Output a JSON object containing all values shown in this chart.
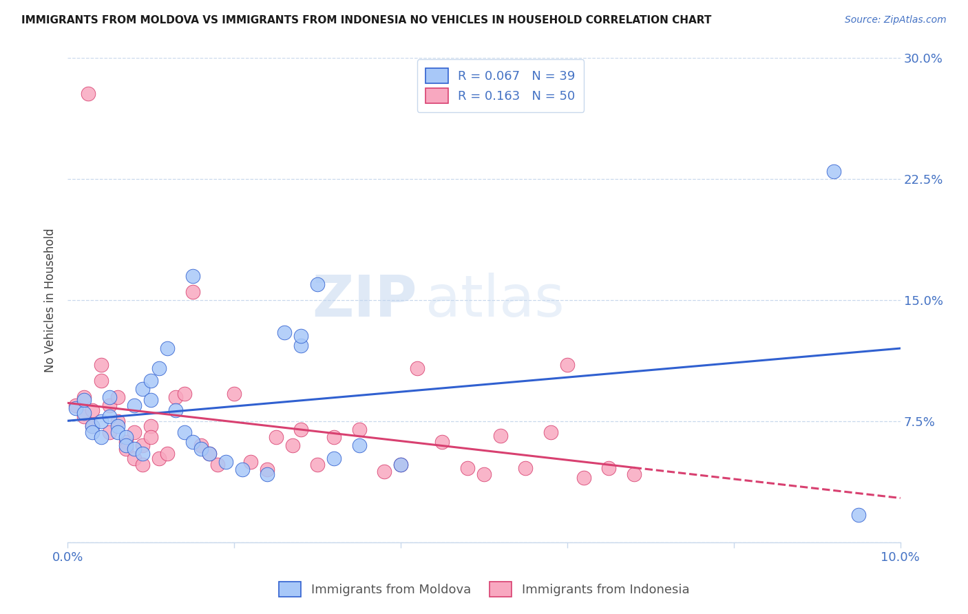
{
  "title": "IMMIGRANTS FROM MOLDOVA VS IMMIGRANTS FROM INDONESIA NO VEHICLES IN HOUSEHOLD CORRELATION CHART",
  "source": "Source: ZipAtlas.com",
  "ylabel": "No Vehicles in Household",
  "xlim": [
    0.0,
    0.1
  ],
  "ylim": [
    0.0,
    0.3
  ],
  "xticks": [
    0.0,
    0.02,
    0.04,
    0.06,
    0.08,
    0.1
  ],
  "xticklabels": [
    "0.0%",
    "",
    "",
    "",
    "",
    "10.0%"
  ],
  "yticks": [
    0.0,
    0.075,
    0.15,
    0.225,
    0.3
  ],
  "yticklabels": [
    "",
    "7.5%",
    "15.0%",
    "22.5%",
    "30.0%"
  ],
  "legend_label1": "Immigrants from Moldova",
  "legend_label2": "Immigrants from Indonesia",
  "R1": 0.067,
  "N1": 39,
  "R2": 0.163,
  "N2": 50,
  "color1": "#a8c8f8",
  "color2": "#f8a8c0",
  "line_color1": "#3060d0",
  "line_color2": "#d84070",
  "watermark_zip": "ZIP",
  "watermark_atlas": "atlas",
  "background_color": "#ffffff",
  "grid_color": "#c8d8ec",
  "tick_color": "#4472c4",
  "moldova_x": [
    0.001,
    0.002,
    0.002,
    0.003,
    0.003,
    0.004,
    0.004,
    0.005,
    0.005,
    0.006,
    0.006,
    0.007,
    0.007,
    0.008,
    0.008,
    0.009,
    0.009,
    0.01,
    0.01,
    0.011,
    0.012,
    0.013,
    0.014,
    0.015,
    0.016,
    0.017,
    0.019,
    0.021,
    0.024,
    0.026,
    0.028,
    0.03,
    0.032,
    0.035,
    0.04,
    0.028,
    0.015,
    0.092,
    0.095
  ],
  "moldova_y": [
    0.083,
    0.08,
    0.088,
    0.072,
    0.068,
    0.075,
    0.065,
    0.09,
    0.078,
    0.072,
    0.068,
    0.065,
    0.06,
    0.058,
    0.085,
    0.055,
    0.095,
    0.1,
    0.088,
    0.108,
    0.12,
    0.082,
    0.068,
    0.062,
    0.058,
    0.055,
    0.05,
    0.045,
    0.042,
    0.13,
    0.122,
    0.16,
    0.052,
    0.06,
    0.048,
    0.128,
    0.165,
    0.23,
    0.017
  ],
  "indonesia_x": [
    0.001,
    0.002,
    0.002,
    0.003,
    0.003,
    0.004,
    0.004,
    0.005,
    0.005,
    0.006,
    0.006,
    0.007,
    0.007,
    0.008,
    0.008,
    0.009,
    0.009,
    0.01,
    0.01,
    0.011,
    0.012,
    0.013,
    0.014,
    0.015,
    0.016,
    0.017,
    0.018,
    0.02,
    0.022,
    0.024,
    0.025,
    0.027,
    0.028,
    0.03,
    0.032,
    0.035,
    0.038,
    0.04,
    0.042,
    0.045,
    0.048,
    0.05,
    0.052,
    0.055,
    0.058,
    0.06,
    0.062,
    0.065,
    0.068,
    0.0025
  ],
  "indonesia_y": [
    0.085,
    0.09,
    0.078,
    0.082,
    0.072,
    0.1,
    0.11,
    0.085,
    0.068,
    0.075,
    0.09,
    0.062,
    0.058,
    0.068,
    0.052,
    0.048,
    0.06,
    0.072,
    0.065,
    0.052,
    0.055,
    0.09,
    0.092,
    0.155,
    0.06,
    0.055,
    0.048,
    0.092,
    0.05,
    0.045,
    0.065,
    0.06,
    0.07,
    0.048,
    0.065,
    0.07,
    0.044,
    0.048,
    0.108,
    0.062,
    0.046,
    0.042,
    0.066,
    0.046,
    0.068,
    0.11,
    0.04,
    0.046,
    0.042,
    0.278
  ]
}
